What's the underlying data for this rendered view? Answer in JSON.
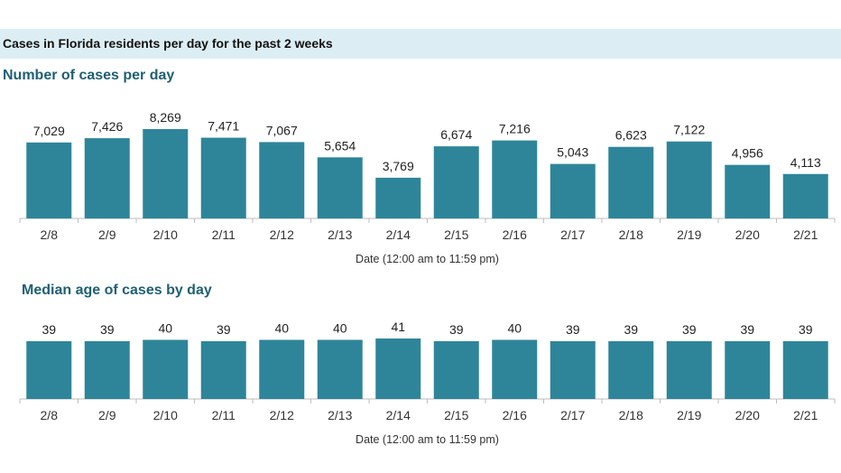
{
  "header": {
    "title": "Cases in Florida residents per day for the past 2 weeks"
  },
  "colors": {
    "bar": "#2e8599",
    "header_bg": "#dceef3",
    "section_title": "#1f5f74",
    "axis": "#bdbdbd"
  },
  "chart_data": [
    {
      "type": "bar",
      "title": "Number of cases per day",
      "xlabel": "Date (12:00 am to 11:59 pm)",
      "ylabel": "",
      "categories": [
        "2/8",
        "2/9",
        "2/10",
        "2/11",
        "2/12",
        "2/13",
        "2/14",
        "2/15",
        "2/16",
        "2/17",
        "2/18",
        "2/19",
        "2/20",
        "2/21"
      ],
      "values": [
        7029,
        7426,
        8269,
        7471,
        7067,
        5654,
        3769,
        6674,
        7216,
        5043,
        6623,
        7122,
        4956,
        4113
      ],
      "value_labels": [
        "7,029",
        "7,426",
        "8,269",
        "7,471",
        "7,067",
        "5,654",
        "3,769",
        "6,674",
        "7,216",
        "5,043",
        "6,623",
        "7,122",
        "4,956",
        "4,113"
      ],
      "grid": false
    },
    {
      "type": "bar",
      "title": "Median age of cases by day",
      "xlabel": "Date (12:00 am to 11:59 pm)",
      "ylabel": "",
      "categories": [
        "2/8",
        "2/9",
        "2/10",
        "2/11",
        "2/12",
        "2/13",
        "2/14",
        "2/15",
        "2/16",
        "2/17",
        "2/18",
        "2/19",
        "2/20",
        "2/21"
      ],
      "values": [
        39,
        39,
        40,
        39,
        40,
        40,
        41,
        39,
        40,
        39,
        39,
        39,
        39,
        39
      ],
      "value_labels": [
        "39",
        "39",
        "40",
        "39",
        "40",
        "40",
        "41",
        "39",
        "40",
        "39",
        "39",
        "39",
        "39",
        "39"
      ],
      "grid": false
    }
  ]
}
